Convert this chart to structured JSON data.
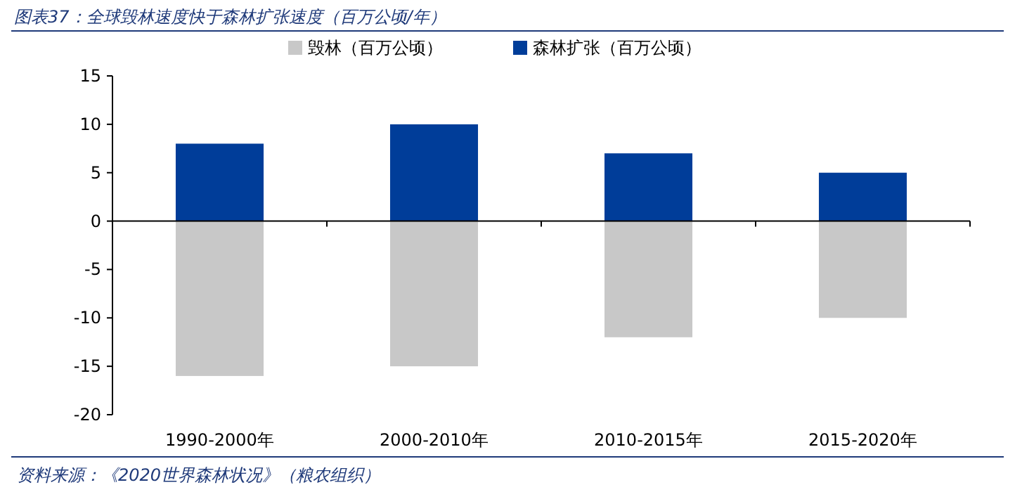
{
  "chart_data": {
    "type": "bar",
    "stacked": true,
    "title": "图表37：全球毁林速度快于森林扩张速度（百万公顷/年）",
    "categories": [
      "1990-2000年",
      "2000-2010年",
      "2010-2015年",
      "2015-2020年"
    ],
    "series": [
      {
        "name": "毁林（百万公顷）",
        "color": "#c8c8c8",
        "values": [
          -16,
          -15,
          -12,
          -10
        ]
      },
      {
        "name": "森林扩张（百万公顷）",
        "color": "#003d99",
        "values": [
          8,
          10,
          7,
          5
        ]
      }
    ],
    "ylim": [
      -20,
      15
    ],
    "yticks": [
      -20,
      -15,
      -10,
      -5,
      0,
      5,
      10,
      15
    ],
    "legend": "top",
    "annotations": [
      "资料来源：《2020世界森林状况》（粮农组织）"
    ]
  }
}
